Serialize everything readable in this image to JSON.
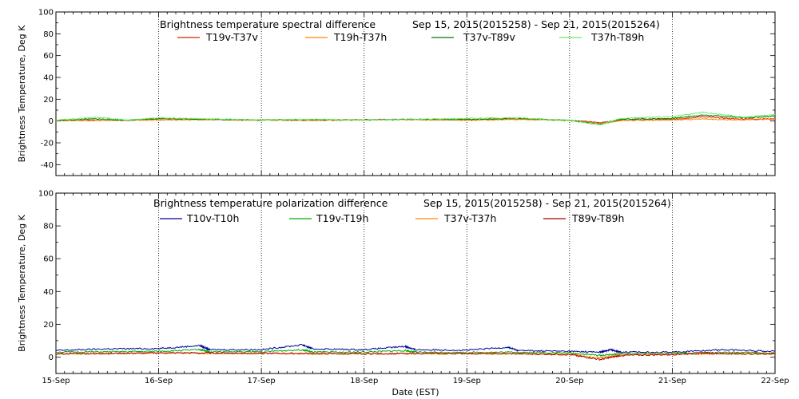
{
  "chart_data": [
    {
      "type": "line",
      "title": "Brightness temperature spectral difference",
      "date_range": "Sep 15, 2015(2015258) - Sep 21, 2015(2015264)",
      "ylabel": "Brightness Temperature, Deg K",
      "ylim": [
        -50,
        100
      ],
      "yticks": [
        -40,
        -20,
        0,
        20,
        40,
        60,
        80,
        100
      ],
      "xlim": [
        "2015-09-15",
        "2015-09-22"
      ],
      "grid": "vertical dotted at each day",
      "series": [
        {
          "name": "T19v-T37v",
          "color": "#dd2200",
          "points": [
            [
              0,
              0.5
            ],
            [
              0.5,
              0.8
            ],
            [
              1,
              1.2
            ],
            [
              1.5,
              1.5
            ],
            [
              2,
              1.0
            ],
            [
              2.5,
              0.8
            ],
            [
              3,
              1.3
            ],
            [
              3.5,
              1.5
            ],
            [
              4,
              1.0
            ],
            [
              4.5,
              1.8
            ],
            [
              5,
              0.8
            ],
            [
              5.3,
              -1.5
            ],
            [
              5.5,
              0.8
            ],
            [
              6,
              1.5
            ],
            [
              6.3,
              4.0
            ],
            [
              6.6,
              2.0
            ],
            [
              7,
              2.0
            ]
          ]
        },
        {
          "name": "T19h-T37h",
          "color": "#ff8800",
          "points": [
            [
              0,
              0.5
            ],
            [
              0.5,
              0.5
            ],
            [
              1,
              1.0
            ],
            [
              1.5,
              1.2
            ],
            [
              2,
              0.8
            ],
            [
              2.5,
              0.5
            ],
            [
              3,
              1.0
            ],
            [
              3.5,
              1.2
            ],
            [
              4,
              0.8
            ],
            [
              4.5,
              1.5
            ],
            [
              5,
              0.5
            ],
            [
              5.3,
              -2.5
            ],
            [
              5.5,
              0.5
            ],
            [
              6,
              1.0
            ],
            [
              6.3,
              2.0
            ],
            [
              6.6,
              1.0
            ],
            [
              7,
              1.5
            ]
          ]
        },
        {
          "name": "T37v-T89v",
          "color": "#007700",
          "points": [
            [
              0,
              0.5
            ],
            [
              0.4,
              2.0
            ],
            [
              0.7,
              0.5
            ],
            [
              1,
              2.5
            ],
            [
              1.5,
              1.5
            ],
            [
              2,
              1.0
            ],
            [
              2.5,
              1.2
            ],
            [
              3,
              1.0
            ],
            [
              3.5,
              1.5
            ],
            [
              4,
              1.5
            ],
            [
              4.5,
              2.5
            ],
            [
              5,
              0.5
            ],
            [
              5.3,
              -3.0
            ],
            [
              5.5,
              1.5
            ],
            [
              6,
              2.5
            ],
            [
              6.3,
              5.5
            ],
            [
              6.7,
              3.0
            ],
            [
              7,
              4.5
            ]
          ]
        },
        {
          "name": "T37h-T89h",
          "color": "#66ee66",
          "points": [
            [
              0,
              0.8
            ],
            [
              0.4,
              3.5
            ],
            [
              0.7,
              0.8
            ],
            [
              1,
              3.0
            ],
            [
              1.5,
              2.0
            ],
            [
              2,
              1.0
            ],
            [
              2.5,
              1.5
            ],
            [
              3,
              1.0
            ],
            [
              3.5,
              1.5
            ],
            [
              4,
              2.5
            ],
            [
              4.5,
              3.0
            ],
            [
              5,
              0.5
            ],
            [
              5.3,
              -3.5
            ],
            [
              5.5,
              2.5
            ],
            [
              6,
              4.0
            ],
            [
              6.3,
              8.0
            ],
            [
              6.7,
              3.5
            ],
            [
              7,
              6.0
            ]
          ]
        }
      ]
    },
    {
      "type": "line",
      "title": "Brightness temperature polarization difference",
      "date_range": "Sep 15, 2015(2015258) - Sep 21, 2015(2015264)",
      "ylabel": "Brightness Temperature, Deg K",
      "ylim": [
        -10,
        100
      ],
      "yticks": [
        0,
        20,
        40,
        60,
        80,
        100
      ],
      "xlim": [
        "2015-09-15",
        "2015-09-22"
      ],
      "xlabel": "Date (EST)",
      "xticks": [
        "15-Sep",
        "16-Sep",
        "17-Sep",
        "18-Sep",
        "19-Sep",
        "20-Sep",
        "21-Sep",
        "22-Sep"
      ],
      "grid": "vertical dotted at each day",
      "series": [
        {
          "name": "T10v-T10h",
          "color": "#000099",
          "points": [
            [
              0,
              4.0
            ],
            [
              0.5,
              5.0
            ],
            [
              1,
              5.2
            ],
            [
              1.4,
              7.0
            ],
            [
              1.5,
              4.5
            ],
            [
              2,
              4.5
            ],
            [
              2.4,
              7.5
            ],
            [
              2.5,
              5.0
            ],
            [
              3,
              4.5
            ],
            [
              3.4,
              6.5
            ],
            [
              3.5,
              4.5
            ],
            [
              4,
              4.2
            ],
            [
              4.4,
              6.0
            ],
            [
              4.5,
              4.0
            ],
            [
              5,
              3.5
            ],
            [
              5.3,
              3.0
            ],
            [
              5.4,
              4.5
            ],
            [
              5.5,
              3.0
            ],
            [
              6,
              3.0
            ],
            [
              6.5,
              4.5
            ],
            [
              7,
              3.5
            ]
          ]
        },
        {
          "name": "T19v-T19h",
          "color": "#00aa00",
          "points": [
            [
              0,
              3.0
            ],
            [
              0.5,
              3.2
            ],
            [
              1,
              3.5
            ],
            [
              1.4,
              4.5
            ],
            [
              1.5,
              3.2
            ],
            [
              2,
              3.2
            ],
            [
              2.4,
              4.5
            ],
            [
              2.5,
              3.0
            ],
            [
              3,
              3.0
            ],
            [
              3.4,
              4.0
            ],
            [
              3.5,
              3.0
            ],
            [
              4,
              2.8
            ],
            [
              4.5,
              3.0
            ],
            [
              5,
              2.5
            ],
            [
              5.3,
              1.0
            ],
            [
              5.5,
              2.0
            ],
            [
              6,
              2.2
            ],
            [
              6.5,
              3.0
            ],
            [
              7,
              2.5
            ]
          ]
        },
        {
          "name": "T37v-T37h",
          "color": "#ff8800",
          "points": [
            [
              0,
              2.0
            ],
            [
              0.5,
              2.2
            ],
            [
              1,
              2.5
            ],
            [
              1.5,
              2.3
            ],
            [
              2,
              2.2
            ],
            [
              2.5,
              2.0
            ],
            [
              3,
              2.0
            ],
            [
              3.5,
              2.0
            ],
            [
              4,
              2.0
            ],
            [
              4.5,
              2.0
            ],
            [
              5,
              1.8
            ],
            [
              5.3,
              -0.5
            ],
            [
              5.5,
              1.5
            ],
            [
              6,
              1.8
            ],
            [
              6.5,
              2.0
            ],
            [
              7,
              2.0
            ]
          ]
        },
        {
          "name": "T89v-T89h",
          "color": "#aa0000",
          "points": [
            [
              0,
              2.0
            ],
            [
              0.5,
              2.2
            ],
            [
              1,
              2.5
            ],
            [
              1.5,
              2.5
            ],
            [
              2,
              2.3
            ],
            [
              2.5,
              2.2
            ],
            [
              3,
              2.0
            ],
            [
              3.5,
              2.2
            ],
            [
              4,
              2.2
            ],
            [
              4.5,
              2.0
            ],
            [
              5,
              1.5
            ],
            [
              5.3,
              -1.5
            ],
            [
              5.5,
              1.0
            ],
            [
              6,
              1.5
            ],
            [
              6.3,
              2.5
            ],
            [
              6.6,
              2.0
            ],
            [
              7,
              2.0
            ]
          ]
        }
      ]
    }
  ]
}
